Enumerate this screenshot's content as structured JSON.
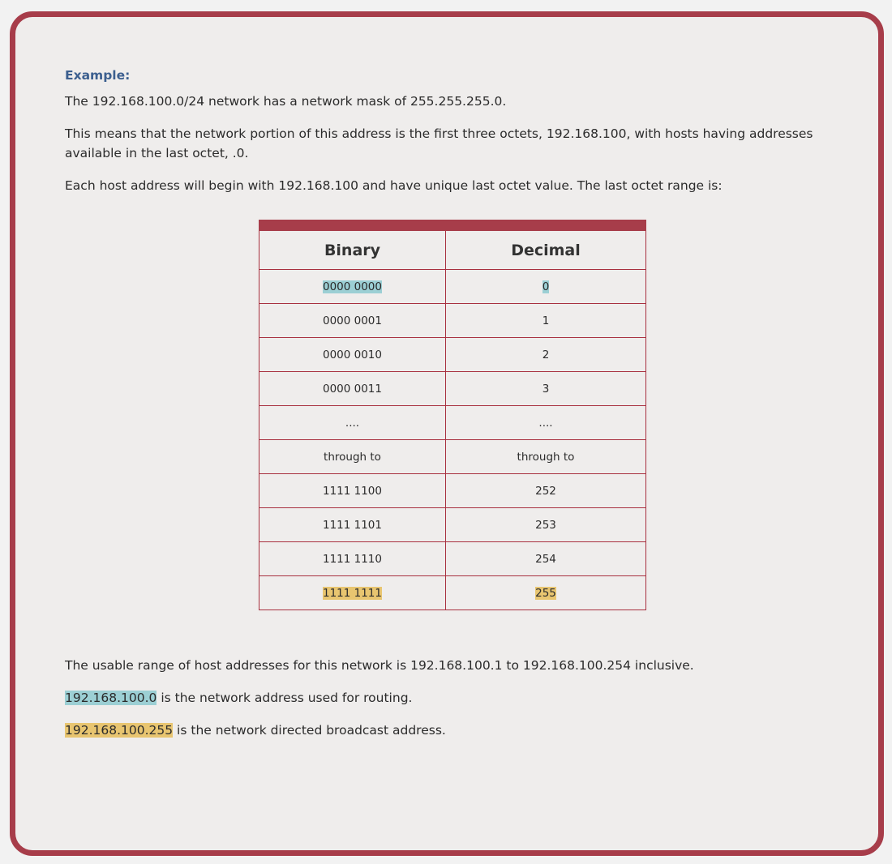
{
  "example_label": "Example:",
  "paragraphs": [
    "The 192.168.100.0/24 network has a network mask of 255.255.255.0.",
    "This means that the network portion of this address is the first three octets, 192.168.100, with hosts having addresses available in the last octet, .0.",
    "Each host address will begin with 192.168.100 and have unique last octet value. The last octet range is:"
  ],
  "table": {
    "headers": [
      "Binary",
      "Decimal"
    ],
    "rows": [
      {
        "binary": "0000 0000",
        "decimal": "0",
        "highlight": "blue"
      },
      {
        "binary": "0000 0001",
        "decimal": "1"
      },
      {
        "binary": "0000 0010",
        "decimal": "2"
      },
      {
        "binary": "0000 0011",
        "decimal": "3"
      },
      {
        "binary": "....",
        "decimal": "...."
      },
      {
        "binary": "through to",
        "decimal": "through to"
      },
      {
        "binary": "1111 1100",
        "decimal": "252"
      },
      {
        "binary": "1111 1101",
        "decimal": "253"
      },
      {
        "binary": "1111 1110",
        "decimal": "254"
      },
      {
        "binary": "1111 1111",
        "decimal": "255",
        "highlight": "yellow"
      }
    ]
  },
  "usable_range": "The usable range of host addresses for this network is 192.168.100.1 to 192.168.100.254 inclusive.",
  "network_address": {
    "value": "192.168.100.0",
    "text": " is the network address used for routing."
  },
  "broadcast_address": {
    "value": "192.168.100.255",
    "text": " is the network directed broadcast address."
  },
  "colors": {
    "accent": "#a73d4a",
    "highlight_blue": "#9ccfd4",
    "highlight_yellow": "#e8c570",
    "label": "#3c5f8f"
  }
}
